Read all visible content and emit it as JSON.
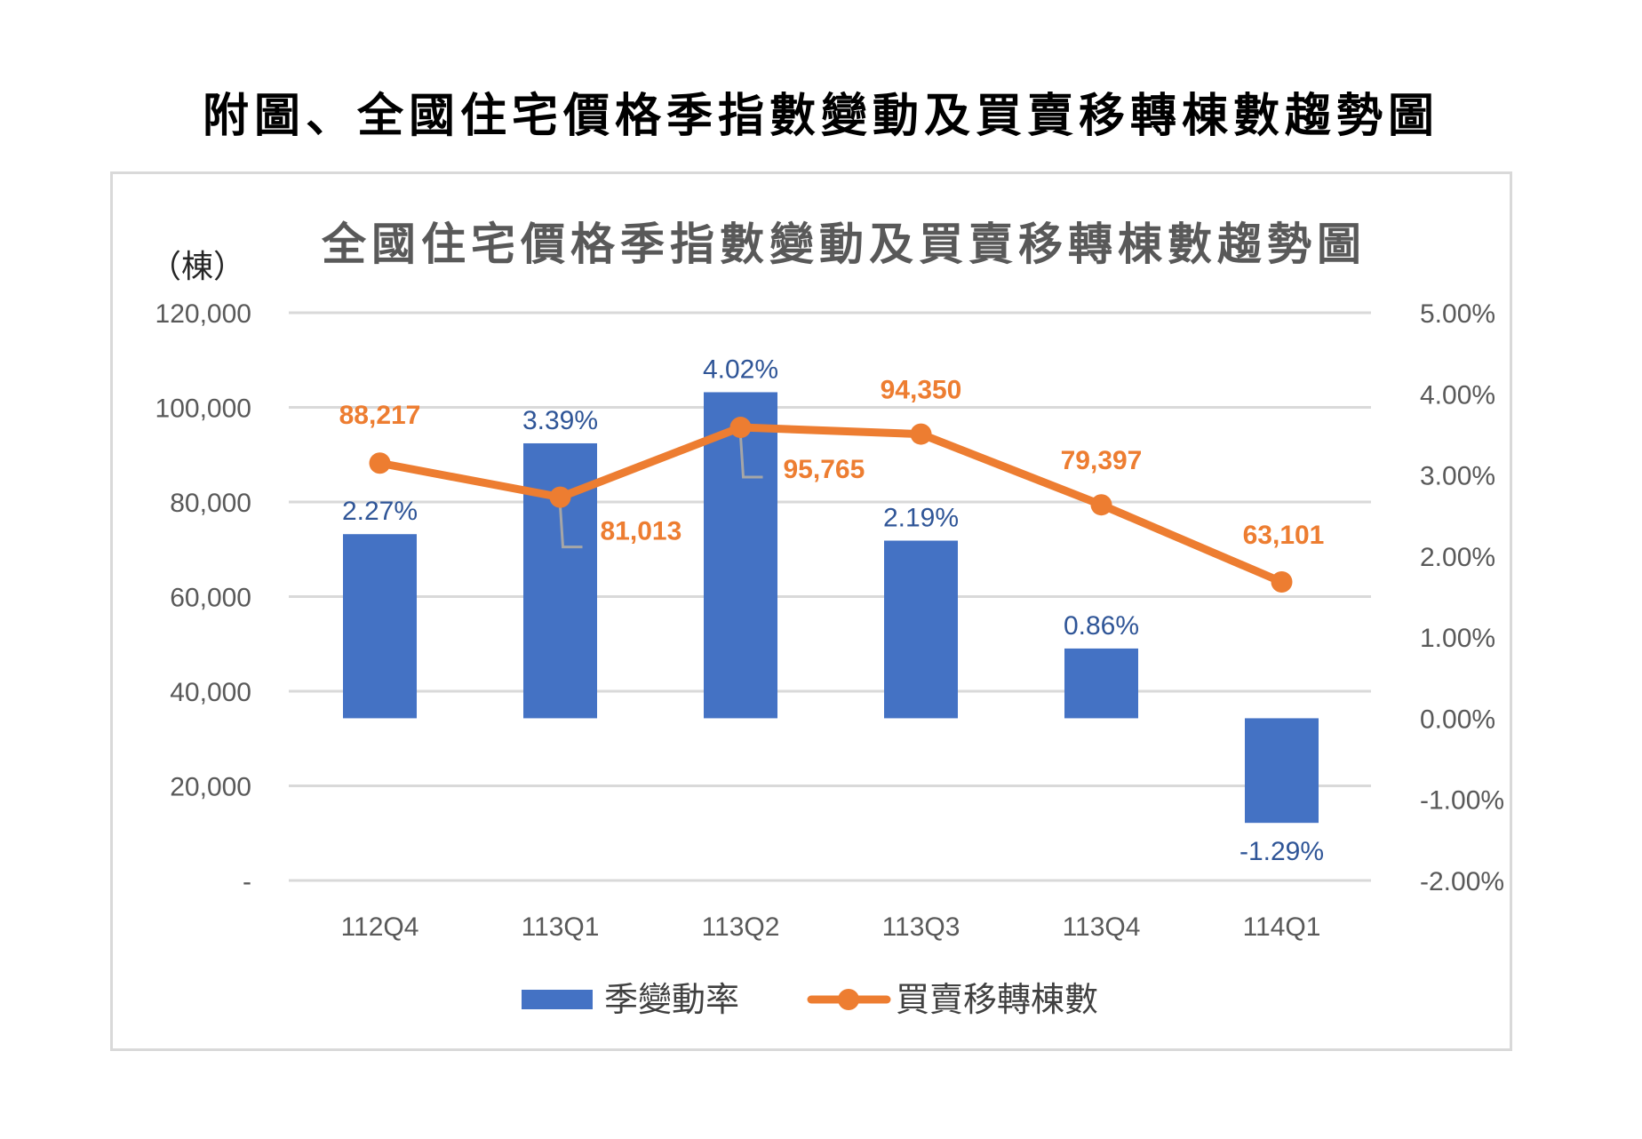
{
  "page_title": "附圖、全國住宅價格季指數變動及買賣移轉棟數趨勢圖",
  "chart": {
    "title": "全國住宅價格季指數變動及買賣移轉棟數趨勢圖",
    "left_unit": "（棟）",
    "legend": {
      "bar": "季變動率",
      "line": "買賣移轉棟數"
    },
    "colors": {
      "bar": "#4472C4",
      "line": "#ED7D31",
      "bar_label": "#2F5597",
      "grid": "#D9D9D9",
      "axis_text": "#595959"
    },
    "left_ticks": [
      "120,000",
      "100,000",
      "80,000",
      "60,000",
      "40,000",
      "20,000",
      "-"
    ],
    "right_ticks": [
      "5.00%",
      "4.00%",
      "3.00%",
      "2.00%",
      "1.00%",
      "0.00%",
      "-1.00%",
      "-2.00%"
    ]
  },
  "chart_data": {
    "type": "bar+line (dual axis)",
    "title": "全國住宅價格季指數變動及買賣移轉棟數趨勢圖",
    "categories": [
      "112Q4",
      "113Q1",
      "113Q2",
      "113Q3",
      "113Q4",
      "114Q1"
    ],
    "series": [
      {
        "name": "季變動率",
        "type": "bar",
        "axis": "right",
        "values": [
          2.27,
          3.39,
          4.02,
          2.19,
          0.86,
          -1.29
        ],
        "labels": [
          "2.27%",
          "3.39%",
          "4.02%",
          "2.19%",
          "0.86%",
          "-1.29%"
        ]
      },
      {
        "name": "買賣移轉棟數",
        "type": "line",
        "axis": "left",
        "values": [
          88217,
          81013,
          95765,
          94350,
          79397,
          63101
        ],
        "labels": [
          "88,217",
          "81,013",
          "95,765",
          "94,350",
          "79,397",
          "63,101"
        ]
      }
    ],
    "ylabel_left": "（棟）",
    "ylim_left": [
      0,
      120000
    ],
    "ylim_right": [
      -2.0,
      5.0
    ],
    "grid": true,
    "legend_position": "bottom"
  }
}
